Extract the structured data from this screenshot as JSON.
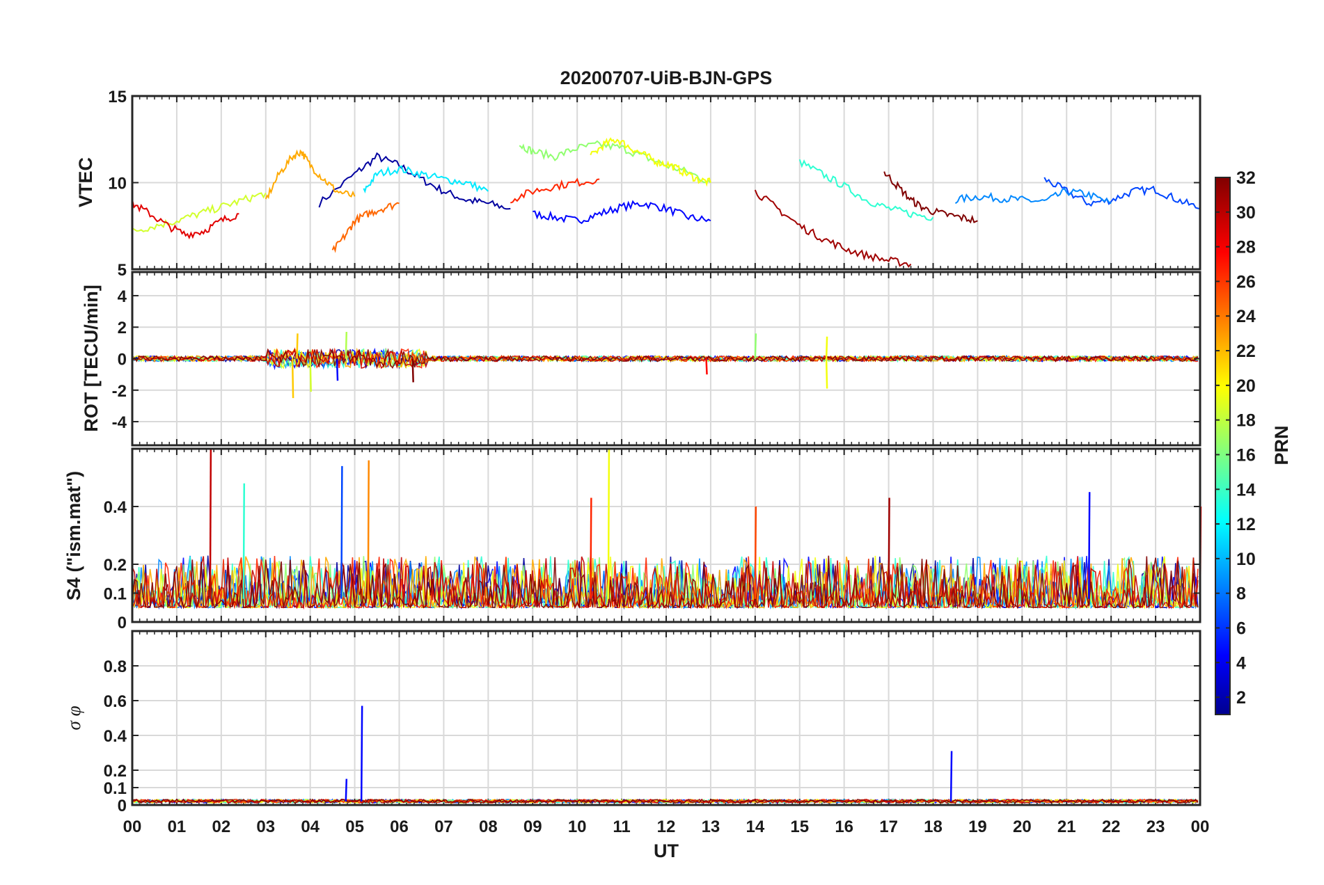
{
  "chart_data": {
    "type": "line",
    "title": "20200707-UiB-BJN-GPS",
    "xlabel": "UT",
    "x_tick_labels": [
      "00",
      "01",
      "02",
      "03",
      "04",
      "05",
      "06",
      "07",
      "08",
      "09",
      "10",
      "11",
      "12",
      "13",
      "14",
      "15",
      "16",
      "17",
      "18",
      "19",
      "20",
      "21",
      "22",
      "23",
      "00"
    ],
    "xlim": [
      0,
      24
    ],
    "grid": true,
    "panels": [
      {
        "name": "VTEC",
        "ylabel": "VTEC",
        "ylim": [
          5,
          15
        ],
        "yticks": [
          5,
          10,
          15
        ],
        "ytick_labels": [
          "5",
          "10",
          "15"
        ],
        "series": [
          {
            "prn": 2,
            "x": [
              4.2,
              5.0,
              5.5,
              6.0,
              6.5,
              7.0,
              7.5,
              8.0,
              8.5
            ],
            "y": [
              8.8,
              10.5,
              11.5,
              11.0,
              10.2,
              9.5,
              9.0,
              8.8,
              8.5
            ]
          },
          {
            "prn": 5,
            "x": [
              9.0,
              9.5,
              10.0,
              10.5,
              11.0,
              11.5,
              12.0,
              12.5,
              13.0
            ],
            "y": [
              8.2,
              8.0,
              7.8,
              8.2,
              8.6,
              8.8,
              8.5,
              8.0,
              7.8
            ]
          },
          {
            "prn": 7,
            "x": [
              20.5,
              21.0,
              21.5,
              22.0,
              22.5,
              23.0,
              23.5,
              24.0
            ],
            "y": [
              10.2,
              9.5,
              8.8,
              9.0,
              9.5,
              9.6,
              9.0,
              8.5
            ]
          },
          {
            "prn": 9,
            "x": [
              18.5,
              19.0,
              19.5,
              20.0,
              20.5,
              21.0,
              21.5,
              22.0
            ],
            "y": [
              9.0,
              9.2,
              9.1,
              9.0,
              8.9,
              9.5,
              9.3,
              8.8
            ]
          },
          {
            "prn": 12,
            "x": [
              5.2,
              5.5,
              6.0,
              6.5,
              7.0,
              7.5,
              8.0
            ],
            "y": [
              9.5,
              10.5,
              10.8,
              10.5,
              10.2,
              10.0,
              9.5
            ]
          },
          {
            "prn": 14,
            "x": [
              15.0,
              15.5,
              16.0,
              16.5,
              17.0,
              17.5,
              18.0
            ],
            "y": [
              11.2,
              10.5,
              9.8,
              9.0,
              8.5,
              8.2,
              8.0
            ]
          },
          {
            "prn": 17,
            "x": [
              8.7,
              9.0,
              9.5,
              10.0,
              10.5,
              11.0,
              11.5,
              12.0,
              12.5,
              13.0
            ],
            "y": [
              12.2,
              11.8,
              11.5,
              12.0,
              12.2,
              12.0,
              11.5,
              11.0,
              10.6,
              10.0
            ]
          },
          {
            "prn": 19,
            "x": [
              0.0,
              0.5,
              1.0,
              1.5,
              2.0,
              2.5,
              3.0
            ],
            "y": [
              7.2,
              7.5,
              7.8,
              8.2,
              8.6,
              9.0,
              9.4
            ]
          },
          {
            "prn": 20,
            "x": [
              10.3,
              10.6,
              10.9,
              11.2,
              11.5,
              11.8,
              12.1,
              12.4,
              12.7,
              13.0
            ],
            "y": [
              11.5,
              12.2,
              12.5,
              12.0,
              11.6,
              11.2,
              11.0,
              10.6,
              10.2,
              10.0
            ]
          },
          {
            "prn": 23,
            "x": [
              3.0,
              3.3,
              3.6,
              3.8,
              4.0,
              4.3,
              4.6,
              5.0
            ],
            "y": [
              9.0,
              10.5,
              11.5,
              11.8,
              11.0,
              10.2,
              9.5,
              9.2
            ]
          },
          {
            "prn": 25,
            "x": [
              4.5,
              4.8,
              5.0,
              5.3,
              5.6,
              6.0
            ],
            "y": [
              6.0,
              7.0,
              7.8,
              8.2,
              8.5,
              8.8
            ]
          },
          {
            "prn": 27,
            "x": [
              8.5,
              9.0,
              9.5,
              10.0,
              10.5
            ],
            "y": [
              9.0,
              9.5,
              9.8,
              10.0,
              10.2
            ]
          },
          {
            "prn": 29,
            "x": [
              0.0,
              0.4,
              0.8,
              1.2,
              1.6,
              2.0,
              2.4
            ],
            "y": [
              8.8,
              8.2,
              7.5,
              7.0,
              7.2,
              7.8,
              8.2
            ]
          },
          {
            "prn": 31,
            "x": [
              14.0,
              14.5,
              15.0,
              15.5,
              16.0,
              16.5,
              17.0,
              17.5
            ],
            "y": [
              9.5,
              8.5,
              7.5,
              6.8,
              6.2,
              5.8,
              5.5,
              5.3
            ]
          },
          {
            "prn": 32,
            "x": [
              16.9,
              17.2,
              17.5,
              17.8,
              18.2,
              18.6,
              19.0
            ],
            "y": [
              10.6,
              9.8,
              9.0,
              8.5,
              8.2,
              8.0,
              7.8
            ]
          }
        ]
      },
      {
        "name": "ROT",
        "ylabel": "ROT [TECU/min]",
        "ylim": [
          -5.5,
          5.5
        ],
        "yticks": [
          -4,
          -2,
          0,
          2,
          4
        ],
        "ytick_labels": [
          "-4",
          "-2",
          "0",
          "2",
          "4"
        ],
        "spikes": [
          {
            "prn": 22,
            "x": 3.6,
            "y": -2.5
          },
          {
            "prn": 22,
            "x": 3.7,
            "y": 1.6
          },
          {
            "prn": 19,
            "x": 4.0,
            "y": -2.1
          },
          {
            "prn": 5,
            "x": 4.6,
            "y": -1.4
          },
          {
            "prn": 18,
            "x": 4.8,
            "y": 1.7
          },
          {
            "prn": 32,
            "x": 6.3,
            "y": -1.5
          },
          {
            "prn": 28,
            "x": 12.9,
            "y": -1.0
          },
          {
            "prn": 17,
            "x": 14.0,
            "y": 1.6
          },
          {
            "prn": 20,
            "x": 15.6,
            "y": -1.9
          },
          {
            "prn": 20,
            "x": 15.6,
            "y": 1.4
          }
        ]
      },
      {
        "name": "S4",
        "ylabel": "S4 (\"ism.mat\")",
        "ylim": [
          0,
          0.6
        ],
        "yticks": [
          0,
          0.1,
          0.2,
          0.4
        ],
        "ytick_labels": [
          "0",
          "0.1",
          "0.2",
          "0.4"
        ],
        "peaks": [
          {
            "prn": 30,
            "x": 1.75,
            "y": 0.6
          },
          {
            "prn": 14,
            "x": 2.5,
            "y": 0.48
          },
          {
            "prn": 7,
            "x": 4.7,
            "y": 0.54
          },
          {
            "prn": 24,
            "x": 5.3,
            "y": 0.56
          },
          {
            "prn": 20,
            "x": 10.7,
            "y": 0.6
          },
          {
            "prn": 27,
            "x": 10.3,
            "y": 0.43
          },
          {
            "prn": 26,
            "x": 14.0,
            "y": 0.4
          },
          {
            "prn": 31,
            "x": 17.0,
            "y": 0.43
          },
          {
            "prn": 5,
            "x": 21.5,
            "y": 0.45
          },
          {
            "prn": 28,
            "x": 24.0,
            "y": 0.4
          }
        ]
      },
      {
        "name": "sigma_phi",
        "ylabel": "σ φ",
        "ylim": [
          0,
          1.0
        ],
        "yticks": [
          0,
          0.1,
          0.2,
          0.4,
          0.6,
          0.8
        ],
        "ytick_labels": [
          "0",
          "0.1",
          "0.2",
          "0.4",
          "0.6",
          "0.8"
        ],
        "spikes": [
          {
            "prn": 5,
            "x": 4.8,
            "y": 0.15
          },
          {
            "prn": 5,
            "x": 5.15,
            "y": 0.57
          },
          {
            "prn": 5,
            "x": 18.4,
            "y": 0.31
          }
        ]
      }
    ],
    "colorbar": {
      "label": "PRN",
      "range": [
        1,
        32
      ],
      "colormap": "jet",
      "tick_labels": [
        "2",
        "4",
        "6",
        "8",
        "10",
        "12",
        "14",
        "16",
        "18",
        "20",
        "22",
        "24",
        "26",
        "28",
        "30",
        "32"
      ]
    }
  }
}
